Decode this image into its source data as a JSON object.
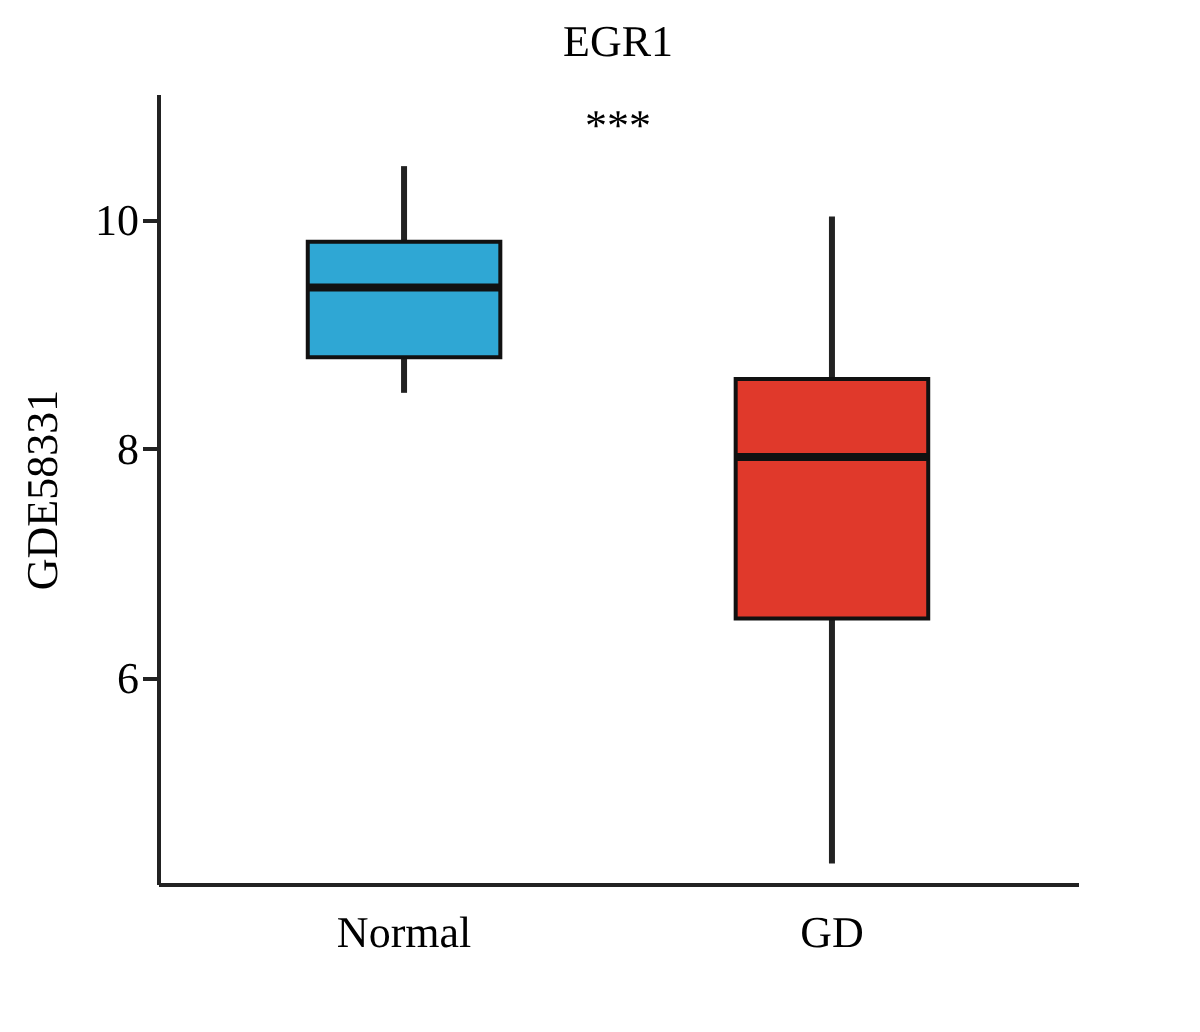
{
  "chart_data": {
    "type": "box",
    "title": "EGR1",
    "ylabel": "GDE58331",
    "categories": [
      "Normal",
      "GD"
    ],
    "boxes": [
      {
        "low": 8.49,
        "q1": 8.8,
        "median": 9.41,
        "q3": 9.81,
        "high": 10.47
      },
      {
        "low": 4.38,
        "q1": 6.52,
        "median": 7.93,
        "q3": 8.61,
        "high": 10.03
      }
    ],
    "colors": [
      "#2fa7d4",
      "#e0392b"
    ],
    "ylim": [
      4.2,
      11.1
    ],
    "yticks": [
      6,
      8,
      10
    ],
    "grid": false,
    "annotations": [
      "***"
    ]
  }
}
